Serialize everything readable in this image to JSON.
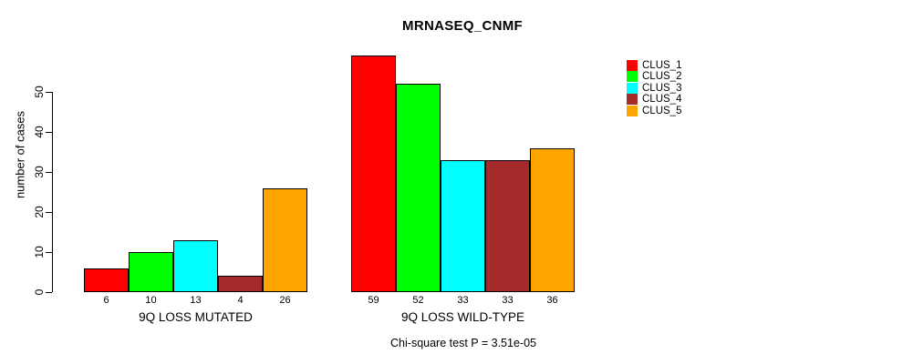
{
  "chart_data": {
    "type": "bar",
    "title": "MRNASEQ_CNMF",
    "ylabel": "number of cases",
    "xlabel": "",
    "categories": [
      "9Q LOSS MUTATED",
      "9Q LOSS WILD-TYPE"
    ],
    "series": [
      {
        "name": "CLUS_1",
        "color": "#FF0000",
        "values": [
          6,
          59
        ]
      },
      {
        "name": "CLUS_2",
        "color": "#00FF00",
        "values": [
          10,
          52
        ]
      },
      {
        "name": "CLUS_3",
        "color": "#00FFFF",
        "values": [
          13,
          33
        ]
      },
      {
        "name": "CLUS_4",
        "color": "#A52A2A",
        "values": [
          4,
          33
        ]
      },
      {
        "name": "CLUS_5",
        "color": "#FFA500",
        "values": [
          26,
          36
        ]
      }
    ],
    "yticks": [
      0,
      10,
      20,
      30,
      40,
      50
    ],
    "ylim": [
      0,
      62
    ],
    "bar_value_labels_shown": true,
    "grid": false,
    "legend_position": "right",
    "annotation": "Chi-square test P = 3.51e-05"
  }
}
